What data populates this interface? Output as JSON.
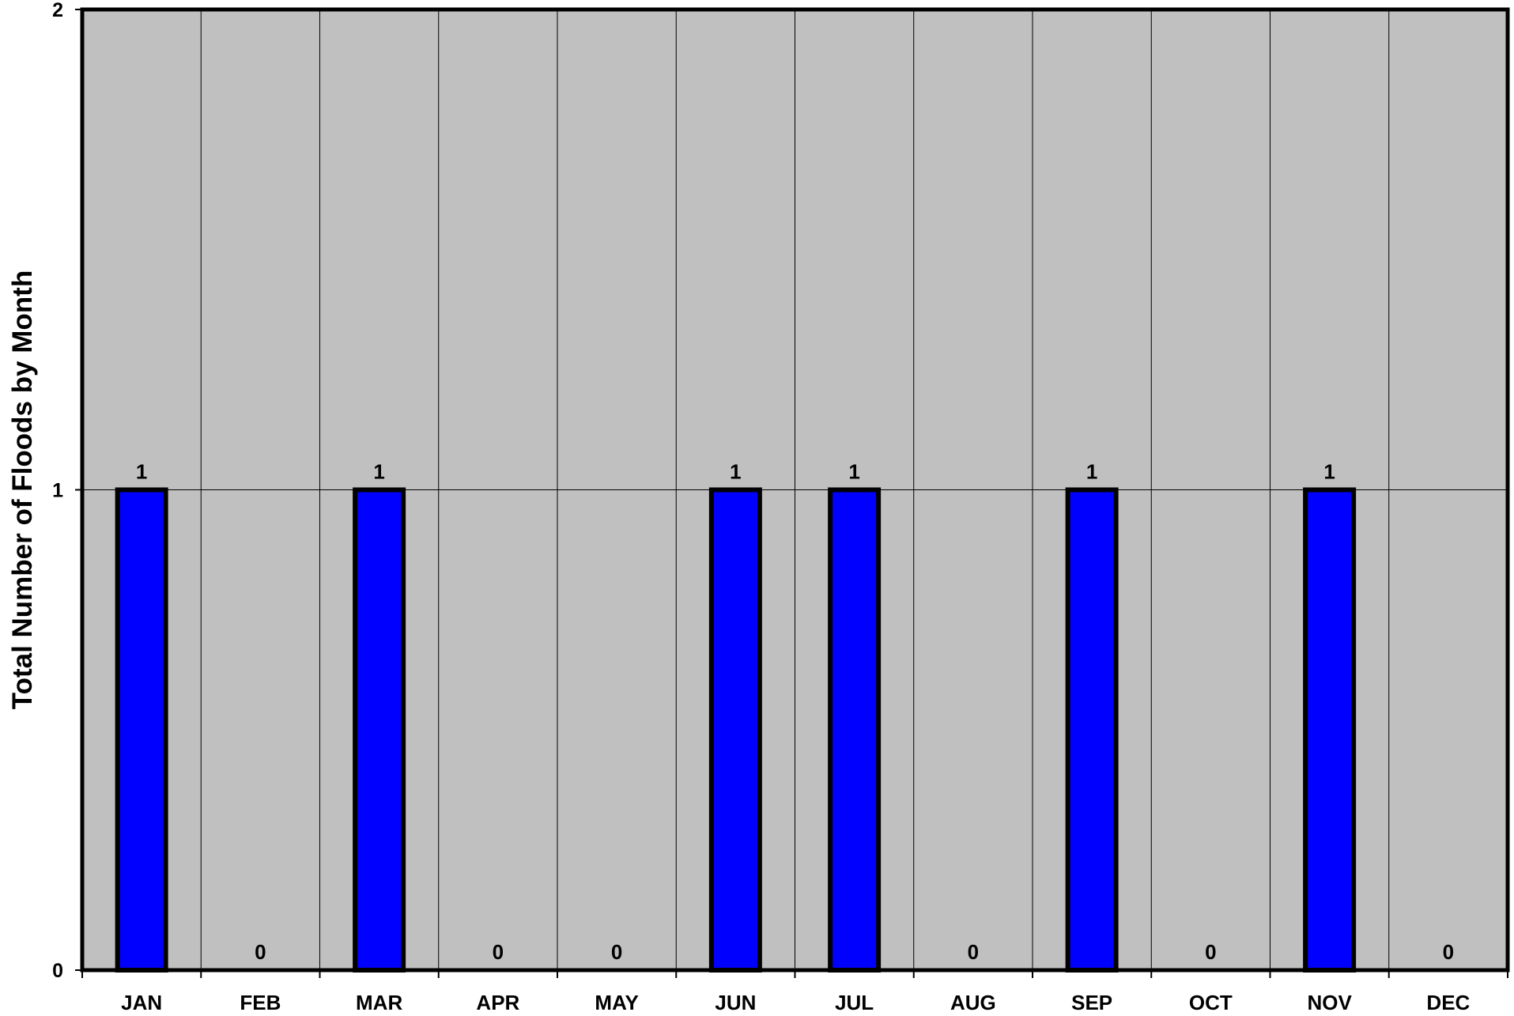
{
  "chart_data": {
    "type": "bar",
    "title": "",
    "xlabel": "",
    "ylabel": "Total Number of Floods by Month",
    "categories": [
      "JAN",
      "FEB",
      "MAR",
      "APR",
      "MAY",
      "JUN",
      "JUL",
      "AUG",
      "SEP",
      "OCT",
      "NOV",
      "DEC"
    ],
    "values": [
      1,
      0,
      1,
      0,
      0,
      1,
      1,
      0,
      1,
      0,
      1,
      0
    ],
    "data_labels": [
      "1",
      "0",
      "1",
      "0",
      "0",
      "1",
      "1",
      "0",
      "1",
      "0",
      "1",
      "0"
    ],
    "ylim": [
      0,
      2
    ],
    "yticks": [
      0,
      1,
      2
    ],
    "ytick_labels": [
      "0",
      "1",
      "2"
    ],
    "grid": true,
    "legend": "none",
    "colors": {
      "bar_fill": "#0000FF",
      "bar_edge": "#000000",
      "plot_background": "#C0C0C0",
      "grid": "#000000"
    }
  }
}
